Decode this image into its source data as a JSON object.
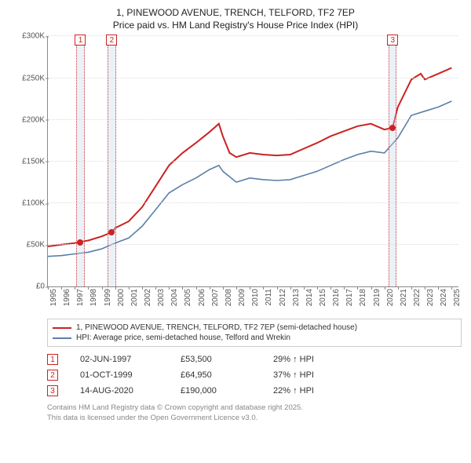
{
  "title": {
    "line1": "1, PINEWOOD AVENUE, TRENCH, TELFORD, TF2 7EP",
    "line2": "Price paid vs. HM Land Registry's House Price Index (HPI)"
  },
  "chart": {
    "type": "line",
    "background_color": "#ffffff",
    "grid_color": "#dddddd",
    "axis_color": "#888888",
    "x_min": 1995,
    "x_max": 2025.5,
    "x_ticks": [
      1995,
      1996,
      1997,
      1998,
      1999,
      2000,
      2001,
      2002,
      2003,
      2004,
      2005,
      2006,
      2007,
      2008,
      2009,
      2010,
      2011,
      2012,
      2013,
      2014,
      2015,
      2016,
      2017,
      2018,
      2019,
      2020,
      2021,
      2022,
      2023,
      2024,
      2025
    ],
    "y_min": 0,
    "y_max": 300000,
    "y_tick_step": 50000,
    "y_tick_labels": [
      "£0",
      "£50K",
      "£100K",
      "£150K",
      "£200K",
      "£250K",
      "£300K"
    ],
    "label_fontsize": 10,
    "series": [
      {
        "name": "subject",
        "color": "#cc2222",
        "width": 2,
        "points": [
          [
            1995,
            48000
          ],
          [
            1996,
            50000
          ],
          [
            1997,
            52000
          ],
          [
            1997.4,
            53500
          ],
          [
            1998,
            55000
          ],
          [
            1999,
            60000
          ],
          [
            1999.75,
            64950
          ],
          [
            2000,
            70000
          ],
          [
            2001,
            78000
          ],
          [
            2002,
            95000
          ],
          [
            2003,
            120000
          ],
          [
            2004,
            145000
          ],
          [
            2005,
            160000
          ],
          [
            2006,
            172000
          ],
          [
            2007,
            185000
          ],
          [
            2007.7,
            195000
          ],
          [
            2008,
            180000
          ],
          [
            2008.5,
            160000
          ],
          [
            2009,
            155000
          ],
          [
            2010,
            160000
          ],
          [
            2011,
            158000
          ],
          [
            2012,
            157000
          ],
          [
            2013,
            158000
          ],
          [
            2014,
            165000
          ],
          [
            2015,
            172000
          ],
          [
            2016,
            180000
          ],
          [
            2017,
            186000
          ],
          [
            2018,
            192000
          ],
          [
            2019,
            195000
          ],
          [
            2020,
            188000
          ],
          [
            2020.6,
            190000
          ],
          [
            2021,
            215000
          ],
          [
            2022,
            248000
          ],
          [
            2022.7,
            255000
          ],
          [
            2023,
            248000
          ],
          [
            2024,
            255000
          ],
          [
            2025,
            262000
          ]
        ]
      },
      {
        "name": "hpi",
        "color": "#5b7fa6",
        "width": 1.6,
        "points": [
          [
            1995,
            36000
          ],
          [
            1996,
            37000
          ],
          [
            1997,
            39000
          ],
          [
            1998,
            41000
          ],
          [
            1999,
            45000
          ],
          [
            2000,
            52000
          ],
          [
            2001,
            58000
          ],
          [
            2002,
            72000
          ],
          [
            2003,
            92000
          ],
          [
            2004,
            112000
          ],
          [
            2005,
            122000
          ],
          [
            2006,
            130000
          ],
          [
            2007,
            140000
          ],
          [
            2007.7,
            145000
          ],
          [
            2008,
            138000
          ],
          [
            2009,
            125000
          ],
          [
            2010,
            130000
          ],
          [
            2011,
            128000
          ],
          [
            2012,
            127000
          ],
          [
            2013,
            128000
          ],
          [
            2014,
            133000
          ],
          [
            2015,
            138000
          ],
          [
            2016,
            145000
          ],
          [
            2017,
            152000
          ],
          [
            2018,
            158000
          ],
          [
            2019,
            162000
          ],
          [
            2020,
            160000
          ],
          [
            2021,
            178000
          ],
          [
            2022,
            205000
          ],
          [
            2023,
            210000
          ],
          [
            2024,
            215000
          ],
          [
            2025,
            222000
          ]
        ]
      }
    ],
    "event_bands": [
      {
        "id": "1",
        "x": 1997.42,
        "band_width_years": 0.6
      },
      {
        "id": "2",
        "x": 1999.75,
        "band_width_years": 0.6
      },
      {
        "id": "3",
        "x": 2020.62,
        "band_width_years": 0.6
      }
    ],
    "sale_points": [
      {
        "x": 1997.42,
        "y": 53500,
        "color": "#cc2222"
      },
      {
        "x": 1999.75,
        "y": 64950,
        "color": "#cc2222"
      },
      {
        "x": 2020.62,
        "y": 190000,
        "color": "#cc2222"
      }
    ]
  },
  "legend": {
    "items": [
      {
        "label": "1, PINEWOOD AVENUE, TRENCH, TELFORD, TF2 7EP (semi-detached house)",
        "color": "#cc2222"
      },
      {
        "label": "HPI: Average price, semi-detached house, Telford and Wrekin",
        "color": "#5b7fa6"
      }
    ]
  },
  "events": [
    {
      "id": "1",
      "date": "02-JUN-1997",
      "price": "£53,500",
      "diff": "29% ↑ HPI"
    },
    {
      "id": "2",
      "date": "01-OCT-1999",
      "price": "£64,950",
      "diff": "37% ↑ HPI"
    },
    {
      "id": "3",
      "date": "14-AUG-2020",
      "price": "£190,000",
      "diff": "22% ↑ HPI"
    }
  ],
  "footnote": {
    "line1": "Contains HM Land Registry data © Crown copyright and database right 2025.",
    "line2": "This data is licensed under the Open Government Licence v3.0."
  }
}
